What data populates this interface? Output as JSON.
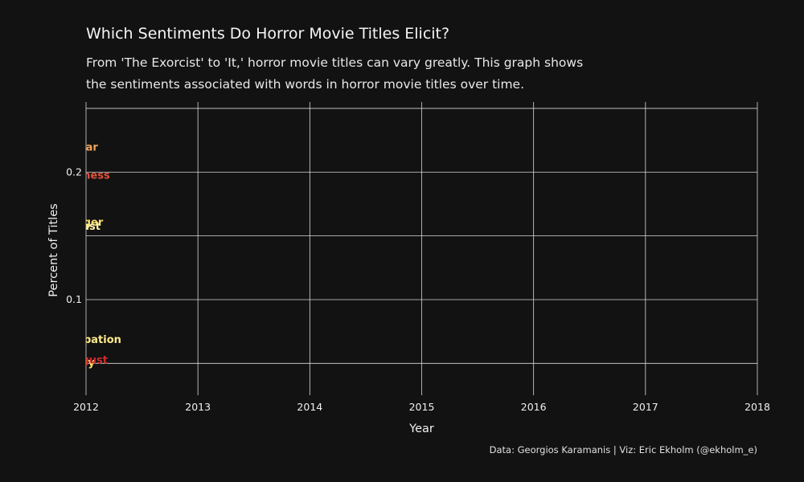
{
  "header": {
    "title": "Which Sentiments Do Horror Movie Titles Elicit?",
    "subtitle_line1": "From 'The Exorcist' to 'It,' horror movie titles can vary greatly. This graph shows",
    "subtitle_line2": "the sentiments associated with words in horror movie titles over time."
  },
  "caption": "Data: Georgios Karamanis | Viz: Eric Ekholm (@ekholm_e)",
  "colors": {
    "background": "#121212",
    "grid": "#d9d9d9",
    "text": "#f0f0f0"
  },
  "chart_data": {
    "type": "line",
    "xlabel": "Year",
    "ylabel": "Percent of Titles",
    "xlim": [
      2012,
      2018
    ],
    "ylim": [
      0.025,
      0.255
    ],
    "x_ticks": [
      "2012",
      "2013",
      "2014",
      "2015",
      "2016",
      "2017",
      "2018"
    ],
    "y_ticks": [
      "0.1",
      "0.2"
    ],
    "grid": true,
    "series": [
      {
        "name": "fear",
        "color": "#f4a259",
        "points": [
          [
            2012,
            0.22
          ]
        ]
      },
      {
        "name": "sadness",
        "color": "#e0523c",
        "points": [
          [
            2012,
            0.198
          ]
        ]
      },
      {
        "name": "anger",
        "color": "#ffdc6a",
        "points": [
          [
            2012,
            0.161
          ]
        ]
      },
      {
        "name": "trust",
        "color": "#fff1a8",
        "points": [
          [
            2012,
            0.158
          ]
        ]
      },
      {
        "name": "anticipation",
        "color": "#ffe98c",
        "points": [
          [
            2012,
            0.069
          ]
        ]
      },
      {
        "name": "joy",
        "color": "#ffe066",
        "points": [
          [
            2012,
            0.051
          ]
        ]
      },
      {
        "name": "disgust",
        "color": "#d42a2a",
        "points": [
          [
            2012,
            0.053
          ]
        ]
      }
    ]
  }
}
